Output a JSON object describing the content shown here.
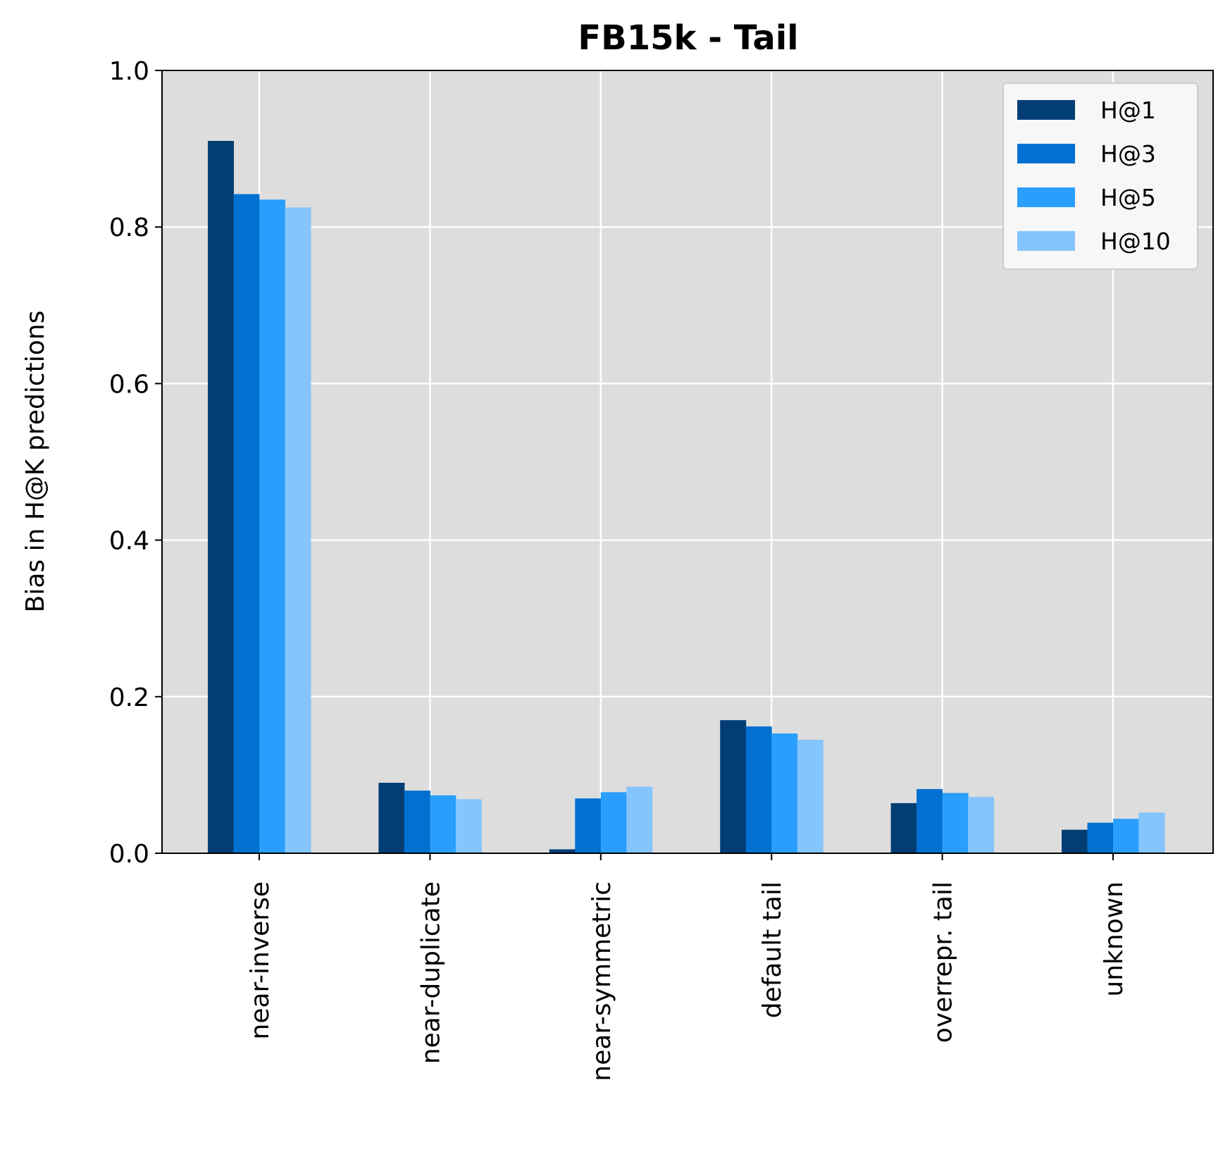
{
  "chart_data": {
    "type": "bar",
    "title": "FB15k - Tail",
    "xlabel": "",
    "ylabel": "Bias in H@K predictions",
    "ylim": [
      0,
      1.0
    ],
    "yticks": [
      "0.0",
      "0.2",
      "0.4",
      "0.6",
      "0.8",
      "1.0"
    ],
    "grid": true,
    "legend_position": "top-right",
    "plot_background": "#dddddd",
    "categories": [
      "near-inverse",
      "near-duplicate",
      "near-symmetric",
      "default tail",
      "overrepr. tail",
      "unknown"
    ],
    "series": [
      {
        "name": "H@1",
        "color": "#023e73",
        "values": [
          0.91,
          0.09,
          0.005,
          0.17,
          0.064,
          0.03
        ]
      },
      {
        "name": "H@3",
        "color": "#0270d0",
        "values": [
          0.842,
          0.08,
          0.07,
          0.162,
          0.082,
          0.039
        ]
      },
      {
        "name": "H@5",
        "color": "#2a9efc",
        "values": [
          0.835,
          0.074,
          0.078,
          0.153,
          0.077,
          0.044
        ]
      },
      {
        "name": "H@10",
        "color": "#85c5fd",
        "values": [
          0.825,
          0.069,
          0.085,
          0.145,
          0.072,
          0.052
        ]
      }
    ]
  }
}
